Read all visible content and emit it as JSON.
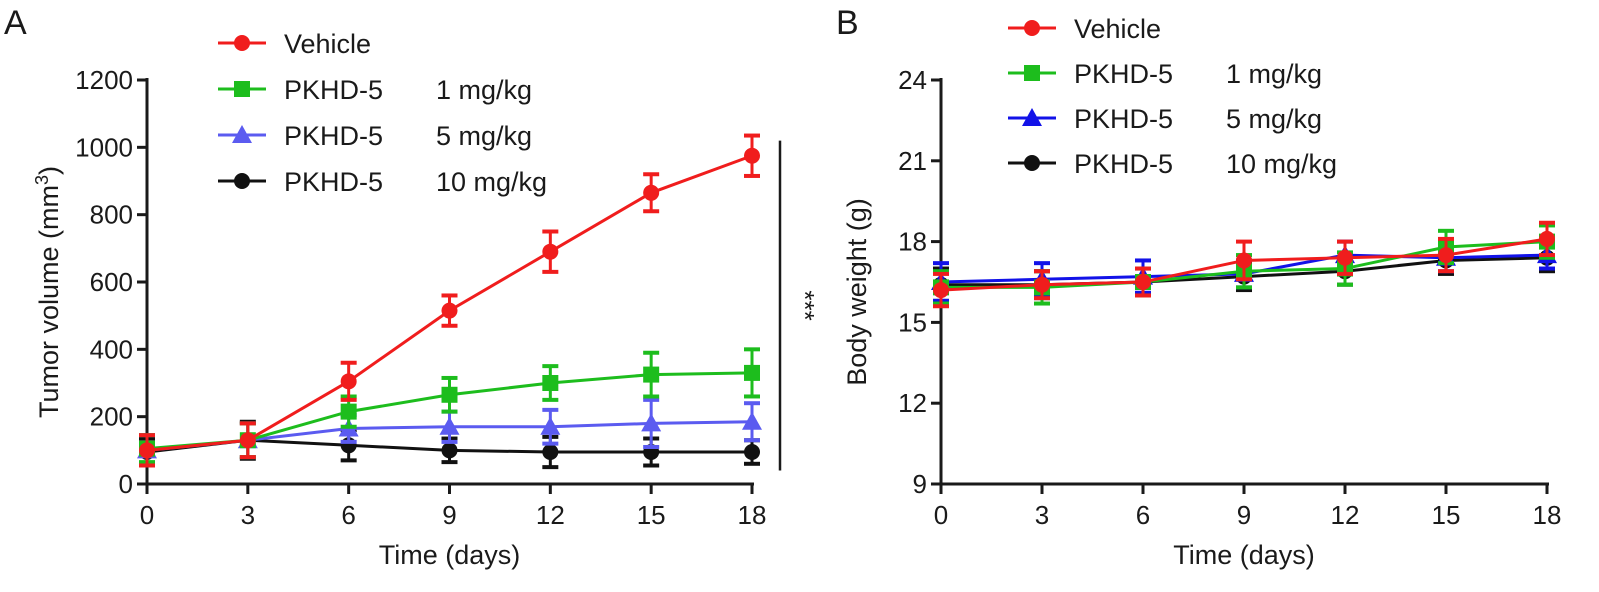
{
  "chart_data": [
    {
      "type": "line",
      "panel": "A",
      "title": "",
      "xlabel": "Time (days)",
      "ylabel": "Tumor volume (mm",
      "ylabel_sup": "3",
      "ylabel_close": ")",
      "x": [
        0,
        3,
        6,
        9,
        12,
        15,
        18
      ],
      "xticks": [
        "0",
        "3",
        "6",
        "9",
        "12",
        "15",
        "18"
      ],
      "yticks": [
        "0",
        "200",
        "400",
        "600",
        "800",
        "1000",
        "1200"
      ],
      "xlim": [
        0,
        18
      ],
      "ylim": [
        0,
        1200
      ],
      "legend_position": "top-left",
      "significance": "***",
      "series": [
        {
          "name": "Vehicle",
          "dose": "",
          "color": "#f01d1d",
          "marker": "circle",
          "values": [
            100,
            130,
            305,
            515,
            690,
            865,
            975
          ],
          "errors": [
            45,
            50,
            55,
            45,
            60,
            55,
            60
          ]
        },
        {
          "name": "PKHD-5",
          "dose": "1 mg/kg",
          "color": "#1dbd1d",
          "marker": "square",
          "values": [
            105,
            130,
            215,
            265,
            300,
            325,
            330
          ],
          "errors": [
            40,
            50,
            45,
            50,
            50,
            65,
            70
          ]
        },
        {
          "name": "PKHD-5",
          "dose": "5 mg/kg",
          "color": "#5b5bf0",
          "marker": "triangle",
          "values": [
            100,
            130,
            165,
            170,
            170,
            180,
            185
          ],
          "errors": [
            45,
            50,
            40,
            45,
            50,
            70,
            55
          ]
        },
        {
          "name": "PKHD-5",
          "dose": "10 mg/kg",
          "color": "#111111",
          "marker": "circle",
          "values": [
            95,
            130,
            115,
            100,
            95,
            95,
            95
          ],
          "errors": [
            40,
            55,
            45,
            35,
            45,
            40,
            35
          ]
        }
      ]
    },
    {
      "type": "line",
      "panel": "B",
      "title": "",
      "xlabel": "Time (days)",
      "ylabel": "Body weight (g)",
      "x": [
        0,
        3,
        6,
        9,
        12,
        15,
        18
      ],
      "xticks": [
        "0",
        "3",
        "6",
        "9",
        "12",
        "15",
        "18"
      ],
      "yticks": [
        "9",
        "12",
        "15",
        "18",
        "21",
        "24"
      ],
      "xlim": [
        0,
        18
      ],
      "ylim": [
        9,
        24
      ],
      "legend_position": "top-left",
      "series": [
        {
          "name": "Vehicle",
          "dose": "",
          "color": "#f01d1d",
          "marker": "circle",
          "values": [
            16.2,
            16.4,
            16.5,
            17.3,
            17.4,
            17.5,
            18.1
          ],
          "errors": [
            0.6,
            0.5,
            0.5,
            0.7,
            0.6,
            0.6,
            0.6
          ]
        },
        {
          "name": "PKHD-5",
          "dose": "1 mg/kg",
          "color": "#1dbd1d",
          "marker": "square",
          "values": [
            16.3,
            16.3,
            16.5,
            16.9,
            17.0,
            17.8,
            18.0
          ],
          "errors": [
            0.6,
            0.6,
            0.5,
            0.6,
            0.6,
            0.6,
            0.6
          ]
        },
        {
          "name": "PKHD-5",
          "dose": "5 mg/kg",
          "color": "#1212e8",
          "marker": "triangle",
          "values": [
            16.5,
            16.6,
            16.7,
            16.8,
            17.5,
            17.4,
            17.5
          ],
          "errors": [
            0.7,
            0.6,
            0.6,
            0.5,
            0.5,
            0.5,
            0.5
          ]
        },
        {
          "name": "PKHD-5",
          "dose": "10 mg/kg",
          "color": "#111111",
          "marker": "circle",
          "values": [
            16.4,
            16.4,
            16.5,
            16.7,
            16.9,
            17.3,
            17.4
          ],
          "errors": [
            0.6,
            0.5,
            0.5,
            0.5,
            0.5,
            0.5,
            0.5
          ]
        }
      ]
    }
  ]
}
